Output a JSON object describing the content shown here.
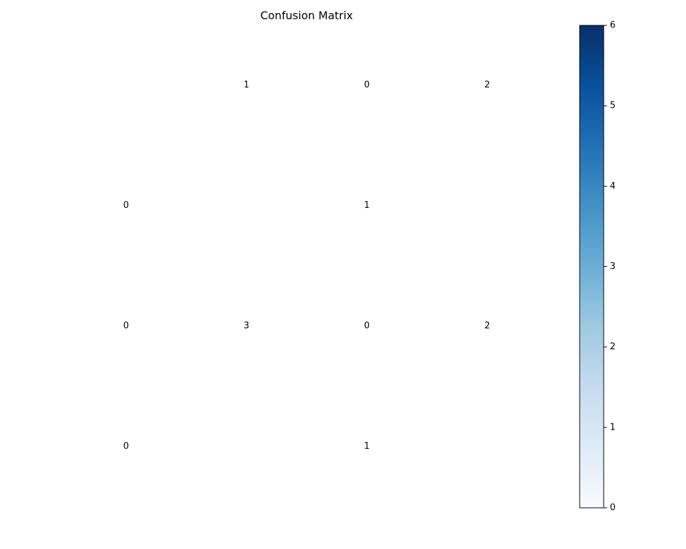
{
  "chart_data": {
    "type": "heatmap",
    "title": "Confusion Matrix",
    "rows": 4,
    "cols": 4,
    "annotations": [
      [
        "",
        "1",
        "0",
        "2"
      ],
      [
        "0",
        "",
        "1",
        ""
      ],
      [
        "0",
        "3",
        "0",
        "2"
      ],
      [
        "0",
        "",
        "1",
        ""
      ]
    ],
    "colorbar": {
      "min": 0,
      "max": 6,
      "ticks": [
        0,
        1,
        2,
        3,
        4,
        5,
        6
      ],
      "colormap": "Blues",
      "color_low": "#f7fbff",
      "color_high": "#08306b"
    },
    "grid": false
  }
}
